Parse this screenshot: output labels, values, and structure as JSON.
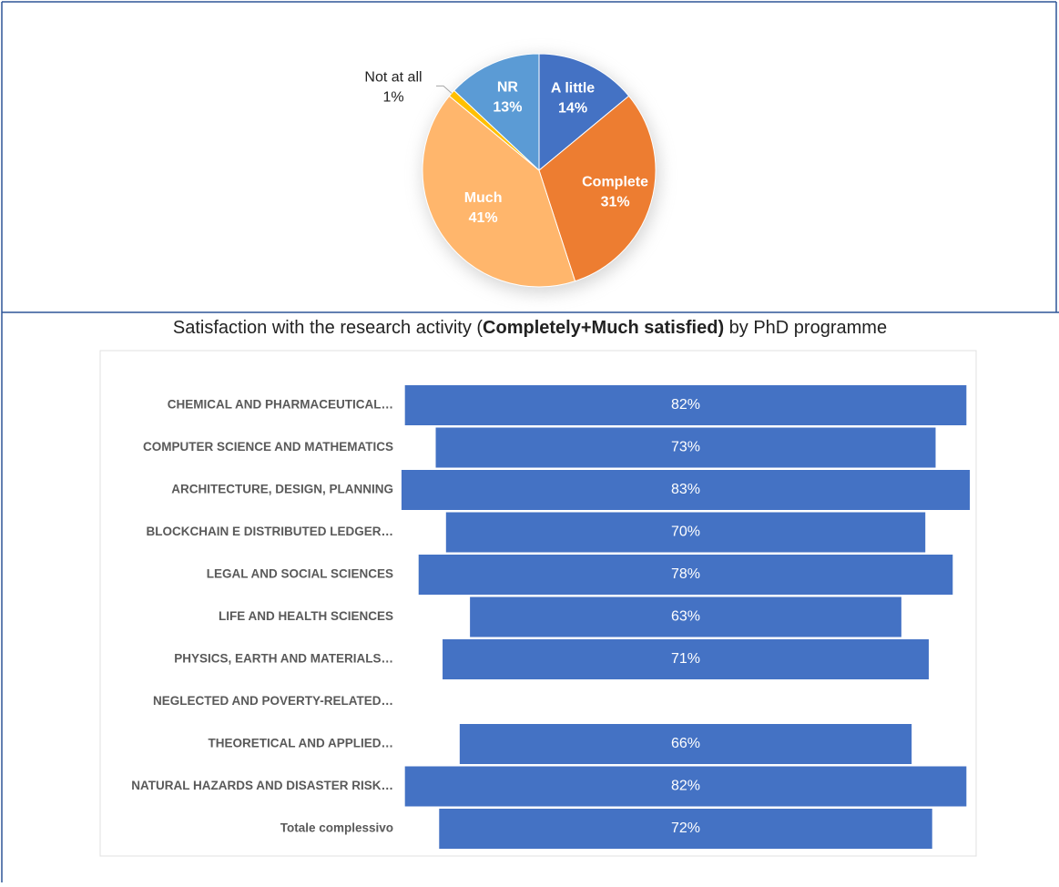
{
  "chart_data": [
    {
      "type": "pie",
      "categories": [
        "A little",
        "Complete",
        "Much",
        "Not at all",
        "NR"
      ],
      "values": [
        14,
        31,
        41,
        1,
        13
      ],
      "value_labels": [
        "14%",
        "31%",
        "41%",
        "1%",
        "13%"
      ],
      "colors": [
        "#4472c4",
        "#ed7d31",
        "#ffb66c",
        "#ffc000",
        "#5b9bd5"
      ]
    },
    {
      "type": "funnel",
      "title_parts": [
        "Satisfaction with the research activity (",
        "Completely+Much satisfied)",
        " by PhD programme"
      ],
      "categories": [
        "CHEMICAL AND PHARMACEUTICAL…",
        "COMPUTER SCIENCE AND MATHEMATICS",
        "ARCHITECTURE, DESIGN, PLANNING",
        "BLOCKCHAIN E DISTRIBUTED LEDGER…",
        "LEGAL AND SOCIAL SCIENCES",
        "LIFE AND HEALTH SCIENCES",
        "PHYSICS, EARTH AND MATERIALS…",
        "NEGLECTED AND POVERTY-RELATED…",
        "THEORETICAL AND APPLIED…",
        "NATURAL HAZARDS AND DISASTER RISK…",
        "Totale complessivo"
      ],
      "values": [
        82,
        73,
        83,
        70,
        78,
        63,
        71,
        null,
        66,
        82,
        72
      ],
      "value_labels": [
        "82%",
        "73%",
        "83%",
        "70%",
        "78%",
        "63%",
        "71%",
        null,
        "66%",
        "82%",
        "72%"
      ],
      "color": "#4472c4"
    }
  ]
}
